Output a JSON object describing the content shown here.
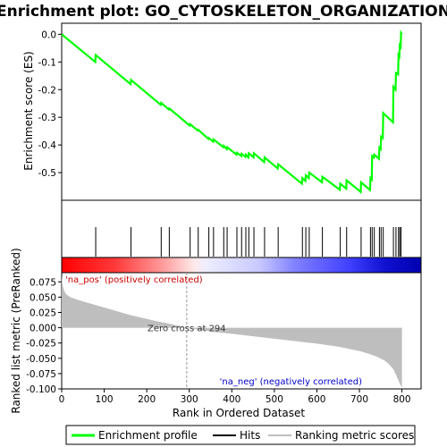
{
  "chart_data": {
    "type": "line",
    "title": "Enrichment plot: GO_CYTOSKELETON_ORGANIZATION",
    "xlabel": "Rank in Ordered Dataset",
    "ylabel_top": "Enrichment score (ES)",
    "ylabel_bottom": "Ranked list metric (PreRanked)",
    "xlim": [
      0,
      845
    ],
    "x_ticks": [
      0,
      100,
      200,
      300,
      400,
      500,
      600,
      700,
      800
    ],
    "es_ylim": [
      -0.6,
      0.04
    ],
    "es_ticks": [
      0.0,
      -0.1,
      -0.2,
      -0.3,
      -0.4,
      -0.5
    ],
    "es_tick_labels": [
      "0.0",
      "-0.1",
      "-0.2",
      "-0.3",
      "-0.4",
      "-0.5"
    ],
    "metric_ylim": [
      -0.1,
      0.09
    ],
    "metric_ticks": [
      0.075,
      0.05,
      0.025,
      0.0,
      -0.025,
      -0.05,
      -0.075,
      -0.1
    ],
    "metric_tick_labels": [
      "0.075",
      "0.050",
      "0.025",
      "0.000",
      "-0.025",
      "-0.050",
      "-0.075",
      "-0.100"
    ],
    "n_genes": 800,
    "zero_cross": 294,
    "annotations": {
      "pos_label": "'na_pos' (positively correlated)",
      "neg_label": "'na_neg' (negatively correlated)",
      "zero_cross_label": "Zero cross at 294"
    },
    "legend": {
      "position": "bottom",
      "items": [
        "Enrichment profile",
        "Hits",
        "Ranking metric scores"
      ]
    },
    "colors": {
      "es_line": "#00ff00",
      "hits": "#000000",
      "metric_fill": "#bebebe",
      "pos_color": "#ff0000",
      "neg_color": "#0000ff"
    },
    "hits": [
      80,
      163,
      234,
      253,
      302,
      321,
      346,
      357,
      381,
      389,
      412,
      423,
      433,
      440,
      452,
      477,
      509,
      566,
      574,
      582,
      613,
      655,
      670,
      704,
      726,
      730,
      735,
      747,
      751,
      756,
      780,
      786,
      792,
      795,
      798
    ],
    "es_curve": {
      "x": [
        0,
        79,
        80,
        162,
        163,
        233,
        234,
        252,
        253,
        301,
        302,
        320,
        321,
        345,
        346,
        356,
        357,
        380,
        381,
        388,
        389,
        411,
        412,
        422,
        423,
        432,
        433,
        439,
        440,
        451,
        452,
        476,
        477,
        508,
        509,
        565,
        566,
        573,
        574,
        581,
        582,
        612,
        613,
        654,
        655,
        669,
        670,
        703,
        704,
        725,
        726,
        729,
        730,
        734,
        735,
        746,
        747,
        750,
        751,
        755,
        756,
        779,
        780,
        785,
        786,
        791,
        792,
        794,
        795,
        797,
        798,
        800
      ],
      "y": [
        0.0,
        -0.1,
        -0.075,
        -0.18,
        -0.165,
        -0.255,
        -0.248,
        -0.272,
        -0.268,
        -0.33,
        -0.325,
        -0.348,
        -0.345,
        -0.378,
        -0.375,
        -0.388,
        -0.38,
        -0.408,
        -0.403,
        -0.415,
        -0.408,
        -0.435,
        -0.428,
        -0.44,
        -0.432,
        -0.443,
        -0.435,
        -0.445,
        -0.43,
        -0.445,
        -0.43,
        -0.462,
        -0.445,
        -0.485,
        -0.47,
        -0.54,
        -0.52,
        -0.53,
        -0.51,
        -0.52,
        -0.5,
        -0.535,
        -0.515,
        -0.562,
        -0.54,
        -0.558,
        -0.528,
        -0.57,
        -0.535,
        -0.563,
        -0.52,
        -0.525,
        -0.44,
        -0.445,
        -0.435,
        -0.45,
        -0.41,
        -0.415,
        -0.37,
        -0.375,
        -0.285,
        -0.318,
        -0.19,
        -0.2,
        -0.14,
        -0.145,
        -0.075,
        -0.08,
        -0.04,
        -0.045,
        0.005,
        0.0
      ]
    },
    "metric_curve": {
      "x": [
        0,
        2,
        5,
        10,
        20,
        40,
        70,
        100,
        130,
        160,
        190,
        220,
        250,
        275,
        294,
        320,
        360,
        400,
        450,
        500,
        550,
        600,
        650,
        700,
        720,
        740,
        760,
        770,
        780,
        788,
        794,
        800
      ],
      "y": [
        0.085,
        0.07,
        0.062,
        0.055,
        0.05,
        0.045,
        0.039,
        0.033,
        0.027,
        0.021,
        0.016,
        0.011,
        0.007,
        0.003,
        0.0,
        -0.003,
        -0.007,
        -0.01,
        -0.014,
        -0.018,
        -0.022,
        -0.026,
        -0.031,
        -0.038,
        -0.042,
        -0.047,
        -0.054,
        -0.06,
        -0.068,
        -0.08,
        -0.09,
        -0.098
      ]
    }
  }
}
